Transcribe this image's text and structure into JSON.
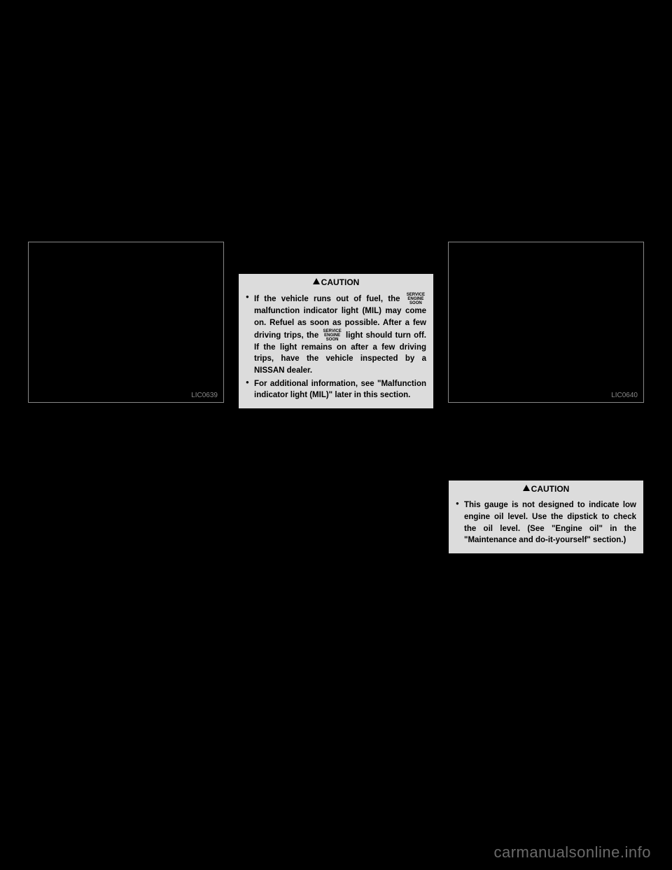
{
  "col1": {
    "figure_label": "LIC0639"
  },
  "col2": {
    "caution_title": "CAUTION",
    "bullets": [
      {
        "pre": "If the vehicle runs out of fuel, the",
        "icon": {
          "l1": "SERVICE",
          "l2": "ENGINE",
          "l3": "SOON"
        },
        "mid": "malfunction indicator light (MIL) may come on. Refuel as soon as possible. After a few driving trips, the",
        "icon2": {
          "l1": "SERVICE",
          "l2": "ENGINE",
          "l3": "SOON"
        },
        "post": "light should turn off. If the light remains on after a few driving trips, have the vehicle inspected by a NISSAN dealer."
      },
      {
        "text": "For additional information, see \"Malfunction indicator light (MIL)\" later in this section."
      }
    ]
  },
  "col3": {
    "figure_label": "LIC0640",
    "caution_title": "CAUTION",
    "bullet": "This gauge is not designed to indicate low engine oil level. Use the dipstick to check the oil level. (See \"Engine oil\" in the \"Maintenance and do-it-yourself\" section.)"
  },
  "watermark": "carmanualsonline.info"
}
